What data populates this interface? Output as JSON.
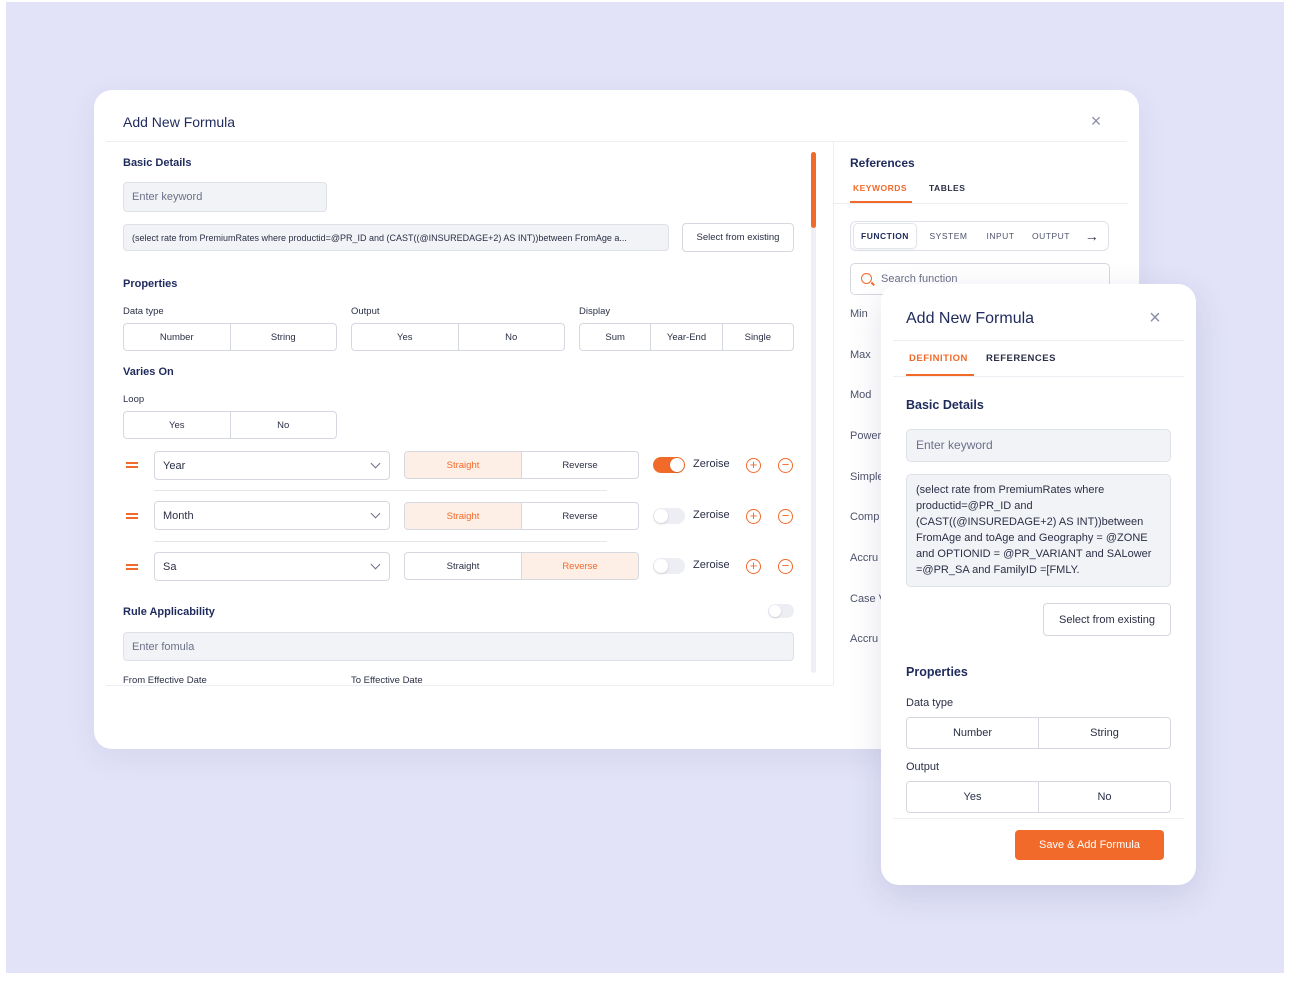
{
  "main_modal": {
    "title": "Add New Formula",
    "basic_details": {
      "heading": "Basic Details",
      "keyword_placeholder": "Enter keyword",
      "formula_value": "(select rate from PremiumRates where productid=@PR_ID and (CAST((@INSUREDAGE+2) AS INT))between FromAge a...",
      "select_existing_label": "Select from existing"
    },
    "properties": {
      "heading": "Properties",
      "data_type": {
        "label": "Data type",
        "options": [
          "Number",
          "String"
        ]
      },
      "output": {
        "label": "Output",
        "options": [
          "Yes",
          "No"
        ]
      },
      "display": {
        "label": "Display",
        "options": [
          "Sum",
          "Year-End",
          "Single"
        ]
      }
    },
    "varies_on": {
      "heading": "Varies On",
      "loop": {
        "label": "Loop",
        "options": [
          "Yes",
          "No"
        ]
      },
      "direction_options": [
        "Straight",
        "Reverse"
      ],
      "zeroise_label": "Zeroise",
      "rows": [
        {
          "variable": "Year",
          "direction": "Straight",
          "zeroise": true
        },
        {
          "variable": "Month",
          "direction": "Straight",
          "zeroise": false
        },
        {
          "variable": "Sa",
          "direction": "Reverse",
          "zeroise": false
        }
      ]
    },
    "rule_applicability": {
      "heading": "Rule Applicability",
      "enabled": false,
      "formula_placeholder": "Enter fomula",
      "from_label": "From Effective Date",
      "to_label": "To Effective Date"
    },
    "references": {
      "heading": "References",
      "tabs": [
        "KEYWORDS",
        "TABLES"
      ],
      "active_tab": "KEYWORDS",
      "categories": [
        "FUNCTION",
        "SYSTEM",
        "INPUT",
        "OUTPUT"
      ],
      "active_category": "FUNCTION",
      "search_placeholder": "Search function",
      "functions": [
        "Min",
        "Max",
        "Mod",
        "Power",
        "Simple",
        "Comp",
        "Accru",
        "Case V",
        "Accru"
      ]
    }
  },
  "side_modal": {
    "title": "Add New Formula",
    "tabs": [
      "DEFINITION",
      "REFERENCES"
    ],
    "active_tab": "DEFINITION",
    "basic_details": {
      "heading": "Basic Details",
      "keyword_placeholder": "Enter keyword",
      "formula_lines": [
        "(select rate from PremiumRates where",
        "productid=@PR_ID and",
        "(CAST((@INSUREDAGE+2) AS INT))between",
        "FromAge and toAge and Geography = @ZONE",
        "and OPTIONID = @PR_VARIANT and SALower",
        "=@PR_SA and FamilyID =[FMLY."
      ],
      "select_existing_label": "Select from existing"
    },
    "properties": {
      "heading": "Properties",
      "data_type": {
        "label": "Data type",
        "options": [
          "Number",
          "String"
        ]
      },
      "output": {
        "label": "Output",
        "options": [
          "Yes",
          "No"
        ]
      }
    },
    "save_label": "Save & Add Formula"
  },
  "colors": {
    "accent": "#f26a2a",
    "backdrop": "#e2e3f8",
    "heading": "#1f2a5c"
  },
  "icons": [
    "close-icon",
    "drag-handle-icon",
    "chevron-down-icon",
    "plus-circle-icon",
    "minus-circle-icon",
    "arrow-right-icon",
    "search-icon"
  ]
}
